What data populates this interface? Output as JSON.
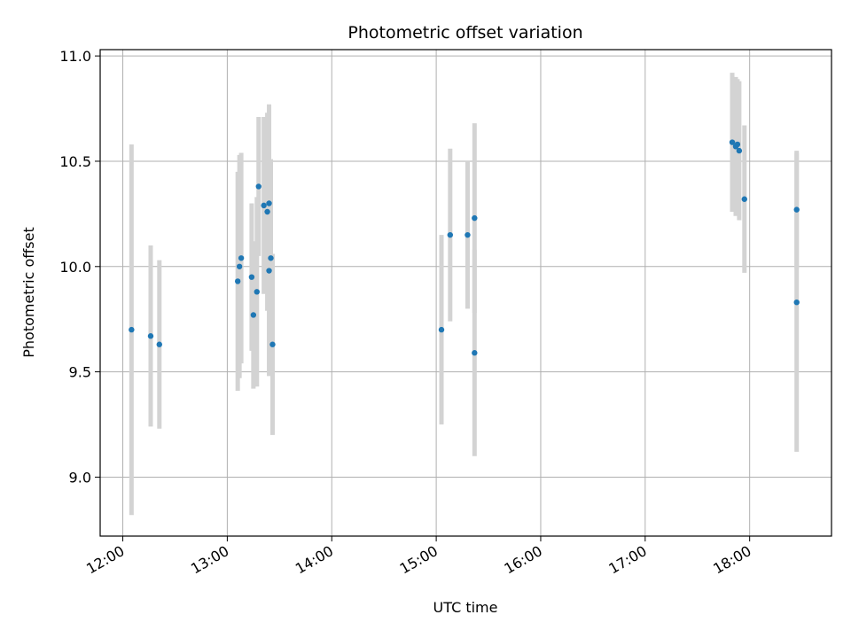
{
  "chart_data": {
    "type": "scatter",
    "title": "Photometric offset variation",
    "xlabel": "UTC time",
    "ylabel": "Photometric offset",
    "x_ticks": [
      "12:00",
      "13:00",
      "14:00",
      "15:00",
      "16:00",
      "17:00",
      "18:00"
    ],
    "y_ticks": [
      "9.0",
      "9.5",
      "10.0",
      "10.5",
      "11.0"
    ],
    "xlim": [
      "11:47",
      "18:47"
    ],
    "ylim": [
      8.72,
      11.03
    ],
    "grid": true,
    "point_color": "#1f77b4",
    "errorbar_color": "#d3d3d3",
    "points": [
      {
        "t": "12:05",
        "y": 9.7,
        "err": 0.88
      },
      {
        "t": "12:16",
        "y": 9.67,
        "err": 0.43
      },
      {
        "t": "12:21",
        "y": 9.63,
        "err": 0.4
      },
      {
        "t": "13:06",
        "y": 9.93,
        "err": 0.52
      },
      {
        "t": "13:07",
        "y": 10.0,
        "err": 0.53
      },
      {
        "t": "13:08",
        "y": 10.04,
        "err": 0.5
      },
      {
        "t": "13:14",
        "y": 9.95,
        "err": 0.35
      },
      {
        "t": "13:15",
        "y": 9.77,
        "err": 0.35
      },
      {
        "t": "13:17",
        "y": 9.88,
        "err": 0.45
      },
      {
        "t": "13:18",
        "y": 10.38,
        "err": 0.33
      },
      {
        "t": "13:21",
        "y": 10.29,
        "err": 0.42
      },
      {
        "t": "13:23",
        "y": 10.26,
        "err": 0.47
      },
      {
        "t": "13:24",
        "y": 10.3,
        "err": 0.47
      },
      {
        "t": "13:24",
        "y": 9.98,
        "err": 0.5
      },
      {
        "t": "13:25",
        "y": 10.04,
        "err": 0.47
      },
      {
        "t": "13:26",
        "y": 9.63,
        "err": 0.43
      },
      {
        "t": "15:03",
        "y": 9.7,
        "err": 0.45
      },
      {
        "t": "15:08",
        "y": 10.15,
        "err": 0.41
      },
      {
        "t": "15:18",
        "y": 10.15,
        "err": 0.35
      },
      {
        "t": "15:22",
        "y": 9.59,
        "err": 0.49
      },
      {
        "t": "15:22",
        "y": 10.23,
        "err": 0.45
      },
      {
        "t": "17:50",
        "y": 10.59,
        "err": 0.33
      },
      {
        "t": "17:52",
        "y": 10.57,
        "err": 0.33
      },
      {
        "t": "17:53",
        "y": 10.58,
        "err": 0.31
      },
      {
        "t": "17:54",
        "y": 10.55,
        "err": 0.33
      },
      {
        "t": "17:57",
        "y": 10.32,
        "err": 0.35
      },
      {
        "t": "18:27",
        "y": 10.27,
        "err": 0.28
      },
      {
        "t": "18:27",
        "y": 9.83,
        "err": 0.71
      }
    ]
  }
}
